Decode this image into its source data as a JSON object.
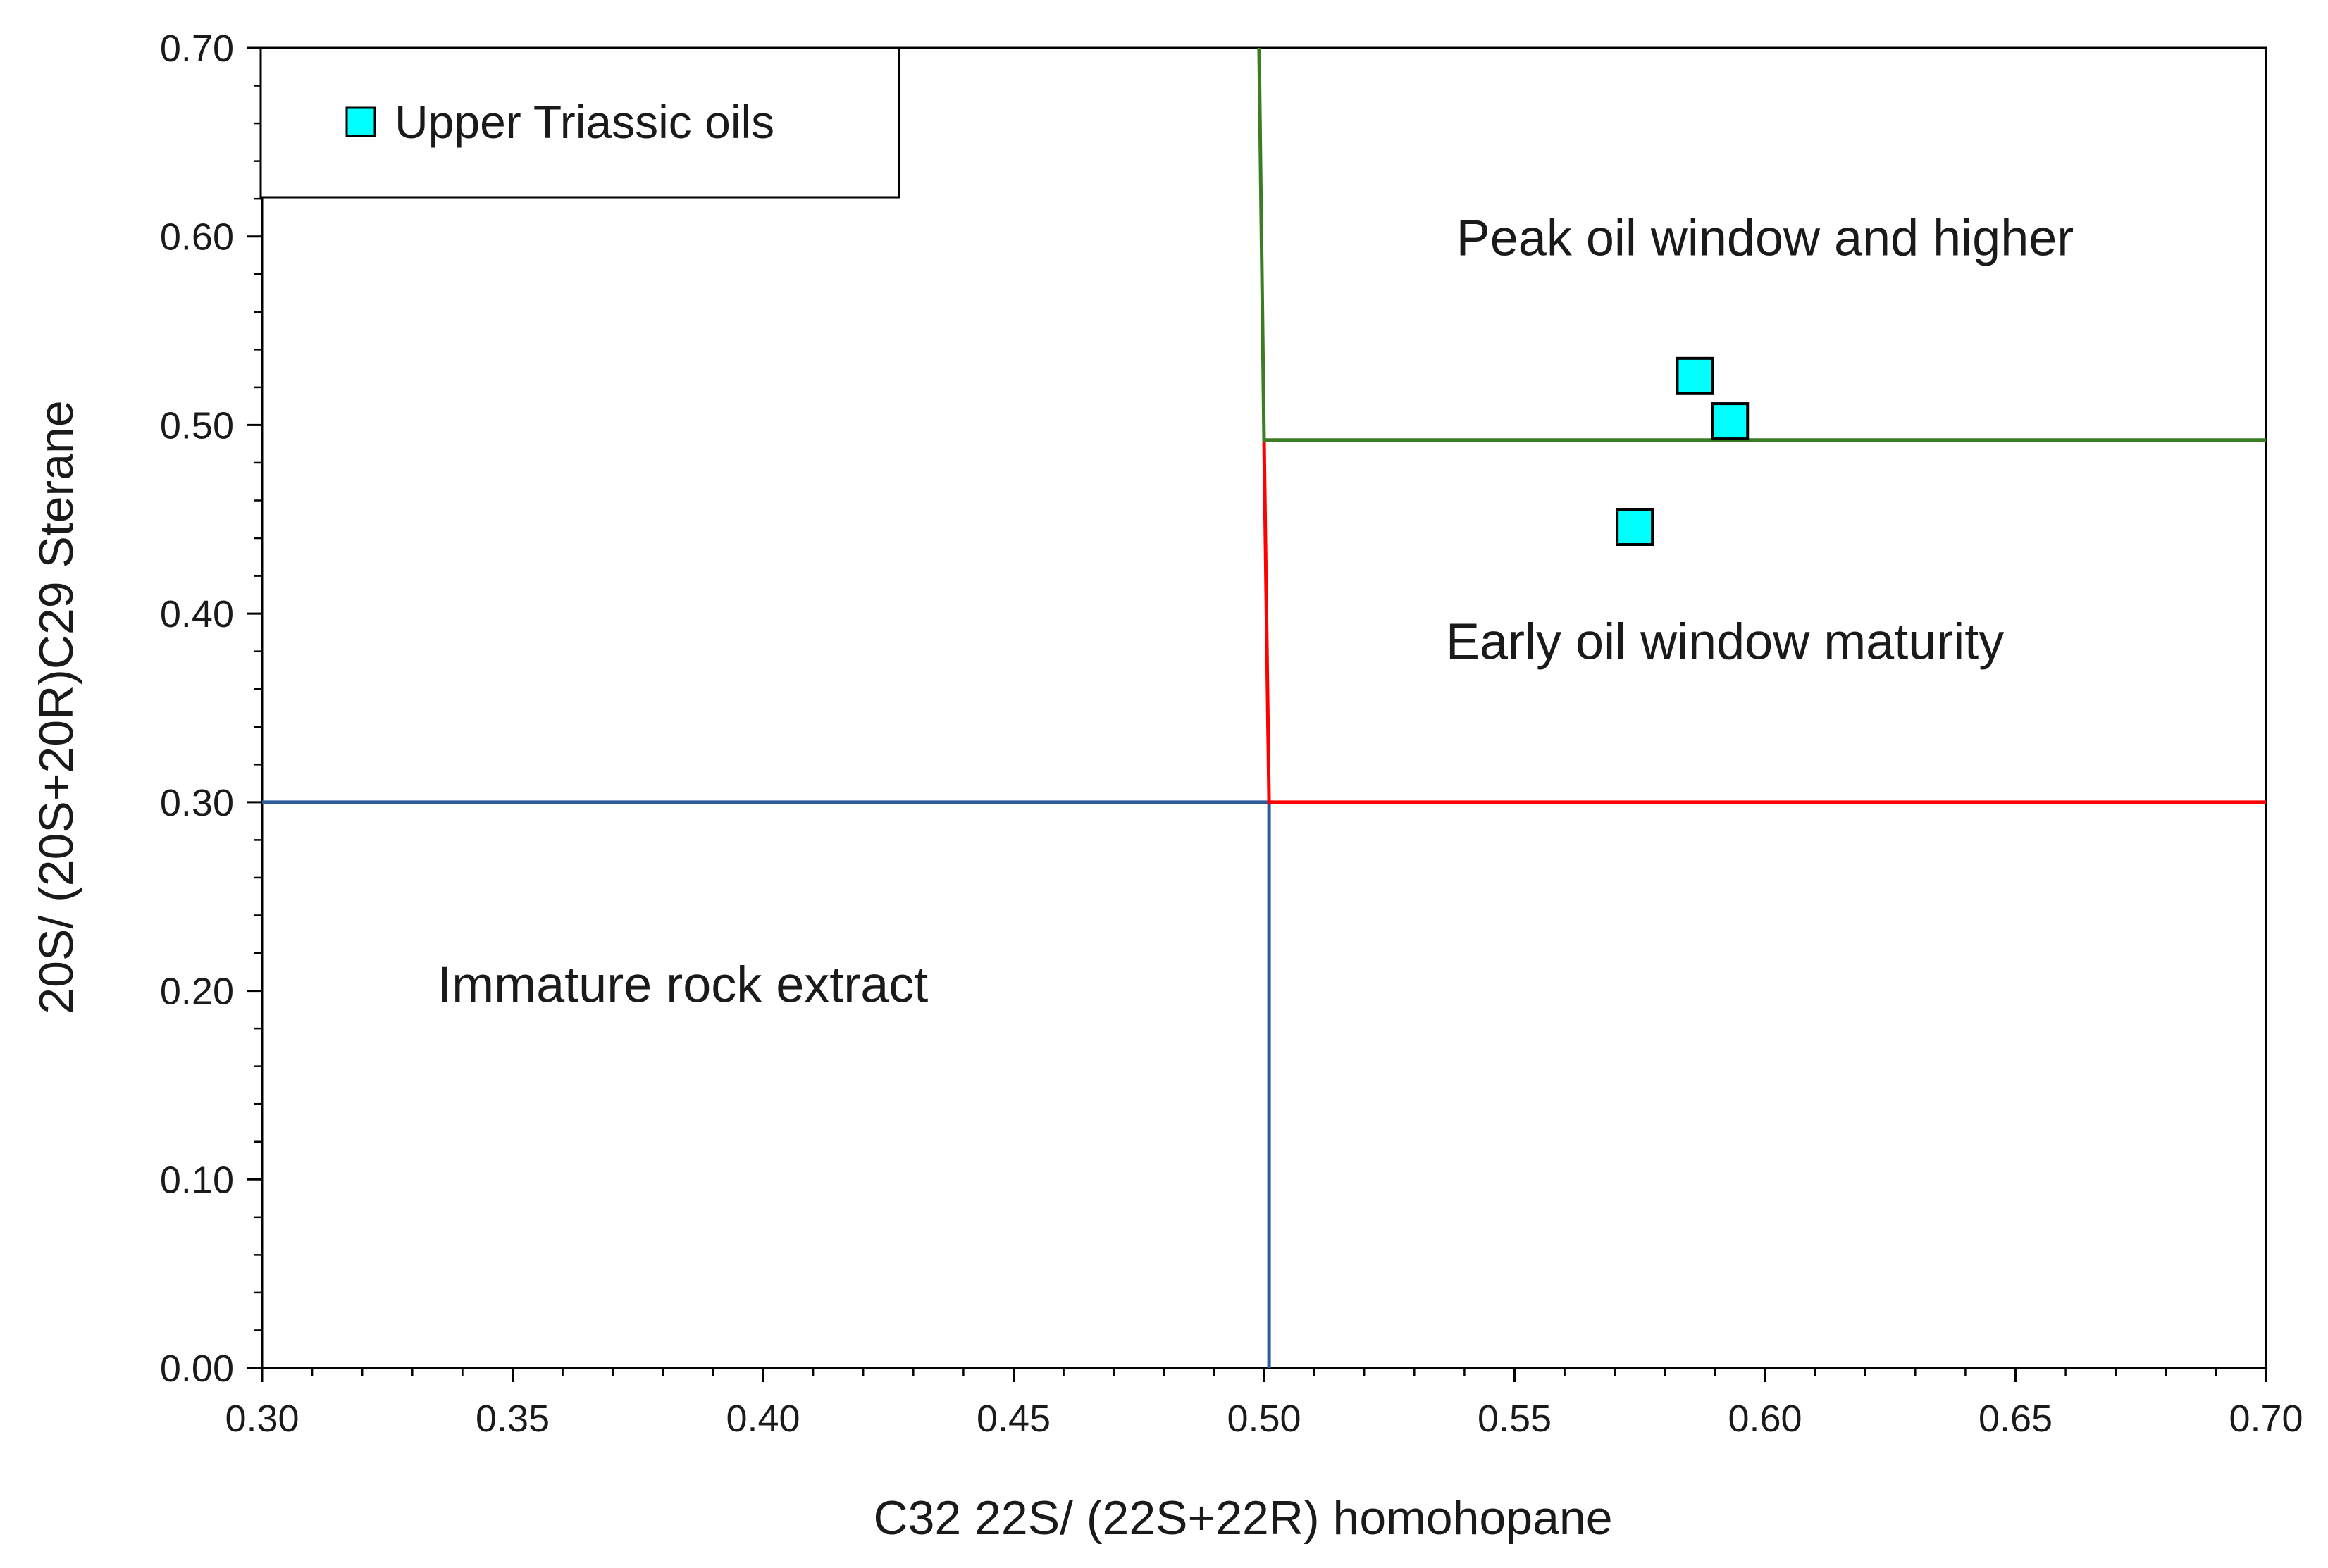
{
  "chart_data": {
    "type": "scatter",
    "title": "",
    "xlabel": "C32 22S/ (22S+22R) homohopane",
    "ylabel": "20S/ (20S+20R)C29 Sterane",
    "xlim": [
      0.3,
      0.7
    ],
    "ylim": [
      0.0,
      0.7
    ],
    "x_ticks": [
      "0.30",
      "0.35",
      "0.40",
      "0.45",
      "0.50",
      "0.55",
      "0.60",
      "0.65",
      "0.70"
    ],
    "y_ticks": [
      "0.00",
      "0.10",
      "0.20",
      "0.30",
      "0.40",
      "0.50",
      "0.60",
      "0.70"
    ],
    "x_tick_values": [
      0.3,
      0.35,
      0.4,
      0.45,
      0.5,
      0.55,
      0.6,
      0.65,
      0.7
    ],
    "y_tick_values": [
      0.0,
      0.1,
      0.2,
      0.3,
      0.4,
      0.5,
      0.6,
      0.7
    ],
    "grid": false,
    "legend_position": "top-left",
    "series": [
      {
        "name": "Upper Triassic oils",
        "marker": "square",
        "color": "#00FFFF",
        "edge_color": "#000000",
        "points": [
          {
            "x": 0.586,
            "y": 0.526
          },
          {
            "x": 0.593,
            "y": 0.502
          },
          {
            "x": 0.574,
            "y": 0.446
          }
        ]
      }
    ],
    "boundaries": [
      {
        "name": "immature-boundary",
        "color": "#2E5C9A",
        "points": [
          [
            0.3,
            0.3
          ],
          [
            0.501,
            0.3
          ],
          [
            0.501,
            0.0
          ]
        ]
      },
      {
        "name": "early-oil-boundary",
        "color": "#FF0000",
        "points": [
          [
            0.5,
            0.492
          ],
          [
            0.501,
            0.3
          ],
          [
            0.7,
            0.3
          ]
        ]
      },
      {
        "name": "peak-oil-boundary",
        "color": "#3A7D22",
        "points": [
          [
            0.499,
            0.7
          ],
          [
            0.5,
            0.492
          ],
          [
            0.7,
            0.492
          ]
        ]
      }
    ],
    "annotations": [
      {
        "text": "Peak oil window and higher",
        "x": 0.6,
        "y": 0.59
      },
      {
        "text": "Early oil window maturity",
        "x": 0.592,
        "y": 0.376
      },
      {
        "text": "Immature rock extract",
        "x": 0.384,
        "y": 0.194
      }
    ]
  }
}
